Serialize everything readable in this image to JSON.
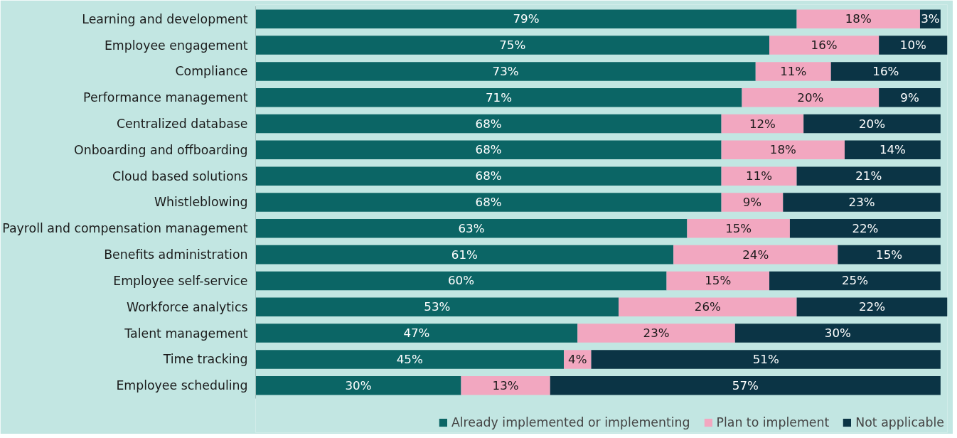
{
  "chart_data": {
    "type": "bar",
    "orientation": "horizontal",
    "stacked": true,
    "tick_labels": "y",
    "legend": "bottom right",
    "categories": [
      "Learning and development",
      "Employee engagement",
      "Compliance",
      "Performance management",
      "Centralized database",
      "Onboarding and offboarding",
      "Cloud based solutions",
      "Whistleblowing",
      "Payroll and compensation management",
      "Benefits administration",
      "Employee self-service",
      "Workforce analytics",
      "Talent management",
      "Time tracking",
      "Employee scheduling"
    ],
    "series": [
      {
        "name": "Already implemented or implementing",
        "color": "#0b6565",
        "values": [
          79,
          75,
          73,
          71,
          68,
          68,
          68,
          68,
          63,
          61,
          60,
          53,
          47,
          45,
          30
        ],
        "value_labels": [
          "79%",
          "75%",
          "73%",
          "71%",
          "68%",
          "68%",
          "68%",
          "68%",
          "63%",
          "61%",
          "60%",
          "53%",
          "47%",
          "45%",
          "30%"
        ]
      },
      {
        "name": "Plan to implement",
        "color": "#f2a7c0",
        "values": [
          18,
          16,
          11,
          20,
          12,
          18,
          11,
          9,
          15,
          24,
          15,
          26,
          23,
          4,
          13
        ],
        "value_labels": [
          "18%",
          "16%",
          "11%",
          "20%",
          "12%",
          "18%",
          "11%",
          "9%",
          "15%",
          "24%",
          "15%",
          "26%",
          "23%",
          "4%",
          "13%"
        ]
      },
      {
        "name": "Not applicable",
        "color": "#0b3445",
        "values": [
          3,
          10,
          16,
          9,
          20,
          14,
          21,
          23,
          22,
          15,
          25,
          22,
          30,
          51,
          57
        ],
        "value_labels": [
          "3%",
          "10%",
          "16%",
          "9%",
          "20%",
          "14%",
          "21%",
          "23%",
          "22%",
          "15%",
          "25%",
          "22%",
          "30%",
          "51%",
          "57%"
        ]
      }
    ]
  }
}
